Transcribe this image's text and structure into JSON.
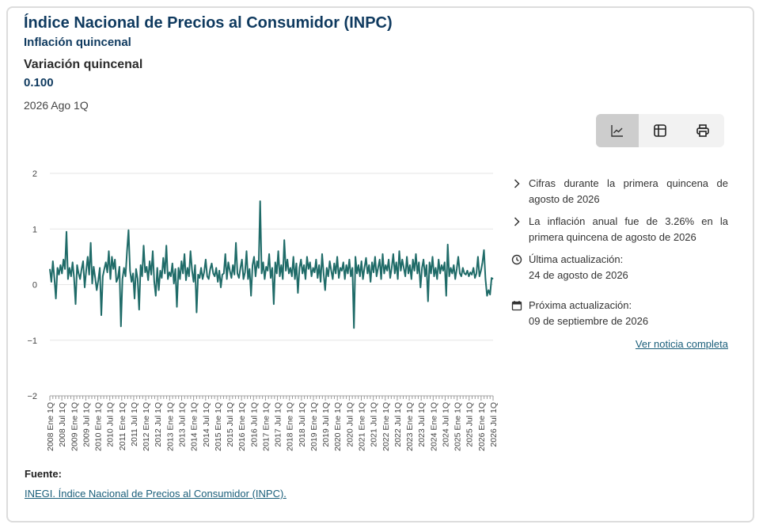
{
  "header": {
    "title": "Índice Nacional de Precios al Consumidor (INPC)",
    "subtitle": "Inflación quincenal",
    "variable_label": "Variación quincenal",
    "variable_value": "0.100",
    "period": "2026 Ago 1Q"
  },
  "toolbar": {
    "buttons": [
      {
        "icon": "line-chart-icon",
        "active": true
      },
      {
        "icon": "table-icon",
        "active": false
      },
      {
        "icon": "printer-icon",
        "active": false
      }
    ]
  },
  "notes": {
    "item1": "Cifras durante la primera quincena de agosto de 2026",
    "item2": "La inflación anual fue de 3.26% en la primera quincena de agosto de 2026",
    "updated_label": "Última actualización:",
    "updated_value": "24 de agosto de 2026",
    "next_label": "Próxima actualización:",
    "next_value": "09 de septiembre de 2026",
    "link": "Ver noticia completa"
  },
  "source": {
    "label": "Fuente:",
    "link": "INEGI. Índice Nacional de Precios al Consumidor (INPC)."
  },
  "colors": {
    "line": "#1f6b68",
    "title": "#0f3a5f",
    "grid": "#e6e6e6",
    "link": "#1a5e7a"
  },
  "chart_data": {
    "type": "line",
    "series": [
      {
        "values": [
          0.28,
          0.05,
          0.42,
          0.12,
          -0.25,
          0.3,
          0.18,
          0.35,
          0.2,
          0.45,
          0.28,
          0.95,
          0.1,
          0.3,
          0.15,
          0.4,
          0.12,
          -0.35,
          0.35,
          0.2,
          0.1,
          0.28,
          0.42,
          -0.05,
          0.25,
          0.5,
          0.18,
          0.75,
          0.02,
          0.32,
          0.12,
          -0.1,
          0.08,
          0.3,
          -0.55,
          0.15,
          0.28,
          0.4,
          0.22,
          0.6,
          0.1,
          0.5,
          0.28,
          0.45,
          0.05,
          0.12,
          0.32,
          -0.75,
          0.1,
          0.3,
          0.15,
          0.6,
          0.98,
          0.25,
          0.05,
          0.2,
          -0.25,
          0.28,
          0.1,
          -0.45,
          0.35,
          0.15,
          0.7,
          0.22,
          0.32,
          0.08,
          0.42,
          0.18,
          0.6,
          0.05,
          -0.2,
          0.3,
          -0.1,
          0.25,
          0.12,
          0.48,
          0.2,
          0.7,
          0.1,
          0.22,
          0.15,
          0.38,
          0.02,
          0.28,
          -0.4,
          0.3,
          0.1,
          0.42,
          0.2,
          0.55,
          0.08,
          0.3,
          0.15,
          0.6,
          0.25,
          0.05,
          0.35,
          -0.5,
          0.18,
          0.12,
          0.3,
          0.1,
          0.22,
          0.45,
          0.15,
          0.1,
          0.28,
          0.38,
          0.2,
          0.15,
          0.3,
          0.05,
          0.25,
          -0.05,
          0.18,
          0.2,
          0.55,
          0.1,
          0.4,
          0.25,
          0.12,
          0.35,
          0.18,
          0.75,
          0.2,
          0.12,
          0.3,
          0.45,
          0.1,
          0.22,
          0.6,
          0.1,
          0.28,
          -0.2,
          0.35,
          0.5,
          0.15,
          0.42,
          0.3,
          1.5,
          0.2,
          0.4,
          0.1,
          0.32,
          0.25,
          0.55,
          0.12,
          0.3,
          -0.35,
          0.4,
          0.2,
          0.6,
          0.15,
          0.35,
          0.1,
          0.8,
          0.25,
          0.45,
          0.2,
          0.3,
          0.15,
          0.5,
          0.1,
          0.38,
          -0.15,
          0.3,
          0.45,
          0.2,
          0.35,
          0.1,
          0.5,
          0.28,
          0.4,
          0.15,
          0.3,
          0.22,
          0.45,
          0.12,
          0.35,
          0.05,
          0.55,
          0.2,
          -0.1,
          0.3,
          0.15,
          0.42,
          0.25,
          0.1,
          0.38,
          0.2,
          0.5,
          0.12,
          0.3,
          0.25,
          0.4,
          0.1,
          0.35,
          0.2,
          0.45,
          0.15,
          0.3,
          -0.78,
          0.5,
          0.2,
          0.35,
          0.15,
          0.42,
          0.1,
          0.3,
          0.48,
          0.2,
          0.35,
          0.05,
          0.4,
          0.22,
          0.5,
          0.15,
          0.3,
          0.45,
          0.1,
          0.55,
          0.2,
          0.35,
          0.25,
          0.45,
          0.12,
          0.3,
          0.55,
          0.2,
          0.4,
          0.1,
          0.6,
          0.25,
          0.45,
          0.3,
          0.15,
          0.5,
          0.2,
          0.35,
          0.1,
          0.45,
          0.25,
          0.55,
          0.2,
          0.4,
          -0.05,
          0.3,
          0.45,
          0.15,
          0.35,
          -0.3,
          0.4,
          0.2,
          0.5,
          0.15,
          0.3,
          0.1,
          0.45,
          0.2,
          0.35,
          0.25,
          0.4,
          -0.2,
          0.72,
          0.15,
          0.3,
          0.2,
          0.35,
          0.1,
          0.28,
          0.5,
          0.2,
          0.15,
          0.3,
          0.2,
          0.18,
          0.25,
          0.15,
          0.22,
          0.18,
          0.3,
          0.12,
          0.2,
          0.5,
          0.15,
          0.25,
          0.4,
          0.62,
          0.1,
          -0.2,
          -0.1,
          -0.18,
          0.12,
          0.1
        ]
      }
    ],
    "xticks": [
      "2008 Ene 1Q",
      "2008 Jul 1Q",
      "2009 Ene 1Q",
      "2009 Jul 1Q",
      "2010 Ene 1Q",
      "2010 Jul 1Q",
      "2011 Ene 1Q",
      "2011 Jul 1Q",
      "2012 Ene 1Q",
      "2012 Jul 1Q",
      "2013 Ene 1Q",
      "2013 Jul 1Q",
      "2014 Ene 1Q",
      "2014 Jul 1Q",
      "2015 Ene 1Q",
      "2015 Jul 1Q",
      "2016 Ene 1Q",
      "2016 Jul 1Q",
      "2017 Ene 1Q",
      "2017 Jul 1Q",
      "2018 Ene 1Q",
      "2018 Jul 1Q",
      "2019 Ene 1Q",
      "2019 Jul 1Q",
      "2020 Ene 1Q",
      "2020 Jul 1Q",
      "2021 Ene 1Q",
      "2021 Jul 1Q",
      "2022 Ene 1Q",
      "2022 Jul 1Q",
      "2023 Ene 1Q",
      "2023 Jul 1Q",
      "2024 Ene 1Q",
      "2024 Jul 1Q",
      "2025 Ene 1Q",
      "2025 Jul 1Q",
      "2026 Ene 1Q",
      "2026 Jul 1Q"
    ],
    "yticks": [
      2,
      1,
      0,
      -1,
      -2
    ],
    "ytick_labels": [
      "2",
      "1",
      "0",
      "−1",
      "−2"
    ],
    "ylim": [
      -2,
      2
    ],
    "grid": true,
    "title": "",
    "xlabel": "",
    "ylabel": ""
  }
}
